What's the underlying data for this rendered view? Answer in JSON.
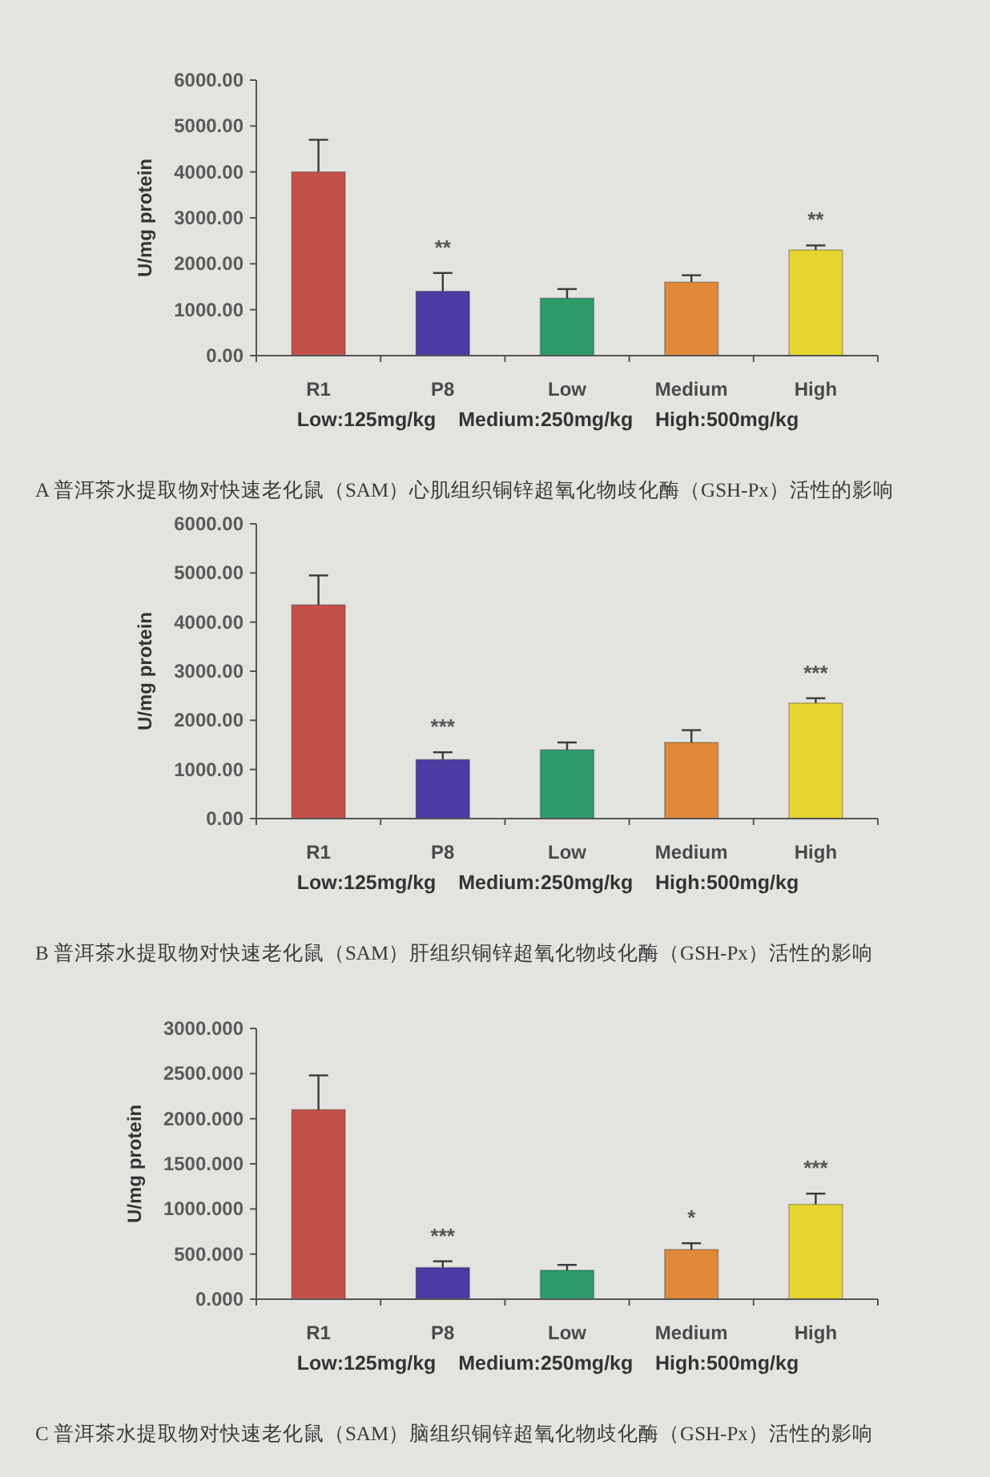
{
  "chart_data": [
    {
      "type": "bar",
      "categories": [
        "R1",
        "P8",
        "Low",
        "Medium",
        "High"
      ],
      "values": [
        4000,
        1400,
        1250,
        1600,
        2300
      ],
      "errors": [
        [
          4000,
          4700
        ],
        [
          1400,
          1800
        ],
        [
          1250,
          1450
        ],
        [
          1600,
          1750
        ],
        [
          2300,
          2400
        ]
      ],
      "colors": [
        "#c4504a",
        "#4b3ba2",
        "#2f9a6a",
        "#df8a3a",
        "#e6d52e"
      ],
      "ylabel": "U/mg protein",
      "xlabel": "Low:125mg/kg    Medium:250mg/kg    High:500mg/kg",
      "ylim": [
        0,
        6000
      ],
      "yticks": [
        {
          "value": 0,
          "label": "0.00"
        },
        {
          "value": 1000,
          "label": "1000.00"
        },
        {
          "value": 2000,
          "label": "2000.00"
        },
        {
          "value": 3000,
          "label": "3000.00"
        },
        {
          "value": 4000,
          "label": "4000.00"
        },
        {
          "value": 5000,
          "label": "5000.00"
        },
        {
          "value": 6000,
          "label": "6000.00"
        }
      ],
      "annotations": [
        "A 普洱茶水提取物对快速老化鼠（SAM）心肌组织铜锌超氧化物歧化酶（GSH-Px）活性的影响",
        {
          "text": "**",
          "x": "P8",
          "y": 1400
        },
        {
          "text": "**",
          "x": "High",
          "y": 2300
        }
      ]
    },
    {
      "type": "bar",
      "categories": [
        "R1",
        "P8",
        "Low",
        "Medium",
        "High"
      ],
      "values": [
        4350,
        1200,
        1400,
        1550,
        2350
      ],
      "errors": [
        [
          4350,
          4950
        ],
        [
          1200,
          1350
        ],
        [
          1400,
          1550
        ],
        [
          1550,
          1800
        ],
        [
          2350,
          2450
        ]
      ],
      "colors": [
        "#c4504a",
        "#4b3ba2",
        "#2f9a6a",
        "#df8a3a",
        "#e6d52e"
      ],
      "ylabel": "U/mg protein",
      "xlabel": "Low:125mg/kg    Medium:250mg/kg    High:500mg/kg",
      "ylim": [
        0,
        6000
      ],
      "yticks": [
        {
          "value": 0,
          "label": "0.00"
        },
        {
          "value": 1000,
          "label": "1000.00"
        },
        {
          "value": 2000,
          "label": "2000.00"
        },
        {
          "value": 3000,
          "label": "3000.00"
        },
        {
          "value": 4000,
          "label": "4000.00"
        },
        {
          "value": 5000,
          "label": "5000.00"
        },
        {
          "value": 6000,
          "label": "6000.00"
        }
      ],
      "annotations": [
        "B 普洱茶水提取物对快速老化鼠（SAM）肝组织铜锌超氧化物歧化酶（GSH-Px）活性的影响",
        {
          "text": "***",
          "x": "P8",
          "y": 1200
        },
        {
          "text": "***",
          "x": "High",
          "y": 2350
        }
      ]
    },
    {
      "type": "bar",
      "categories": [
        "R1",
        "P8",
        "Low",
        "Medium",
        "High"
      ],
      "values": [
        2100,
        350,
        320,
        550,
        1050
      ],
      "errors": [
        [
          2100,
          2480
        ],
        [
          350,
          420
        ],
        [
          320,
          380
        ],
        [
          550,
          620
        ],
        [
          1050,
          1170
        ]
      ],
      "colors": [
        "#c4504a",
        "#4b3ba2",
        "#2f9a6a",
        "#df8a3a",
        "#e6d52e"
      ],
      "ylabel": "U/mg protein",
      "xlabel": "Low:125mg/kg    Medium:250mg/kg    High:500mg/kg",
      "ylim": [
        0,
        3000
      ],
      "yticks": [
        {
          "value": 0,
          "label": "0.000"
        },
        {
          "value": 500,
          "label": "500.000"
        },
        {
          "value": 1000,
          "label": "1000.000"
        },
        {
          "value": 1500,
          "label": "1500.000"
        },
        {
          "value": 2000,
          "label": "2000.000"
        },
        {
          "value": 2500,
          "label": "2500.000"
        },
        {
          "value": 3000,
          "label": "3000.000"
        }
      ],
      "annotations": [
        "C 普洱茶水提取物对快速老化鼠（SAM）脑组织铜锌超氧化物歧化酶（GSH-Px）活性的影响",
        {
          "text": "***",
          "x": "P8",
          "y": 350
        },
        {
          "text": "*",
          "x": "Medium",
          "y": 550
        },
        {
          "text": "***",
          "x": "High",
          "y": 1050
        }
      ]
    }
  ]
}
